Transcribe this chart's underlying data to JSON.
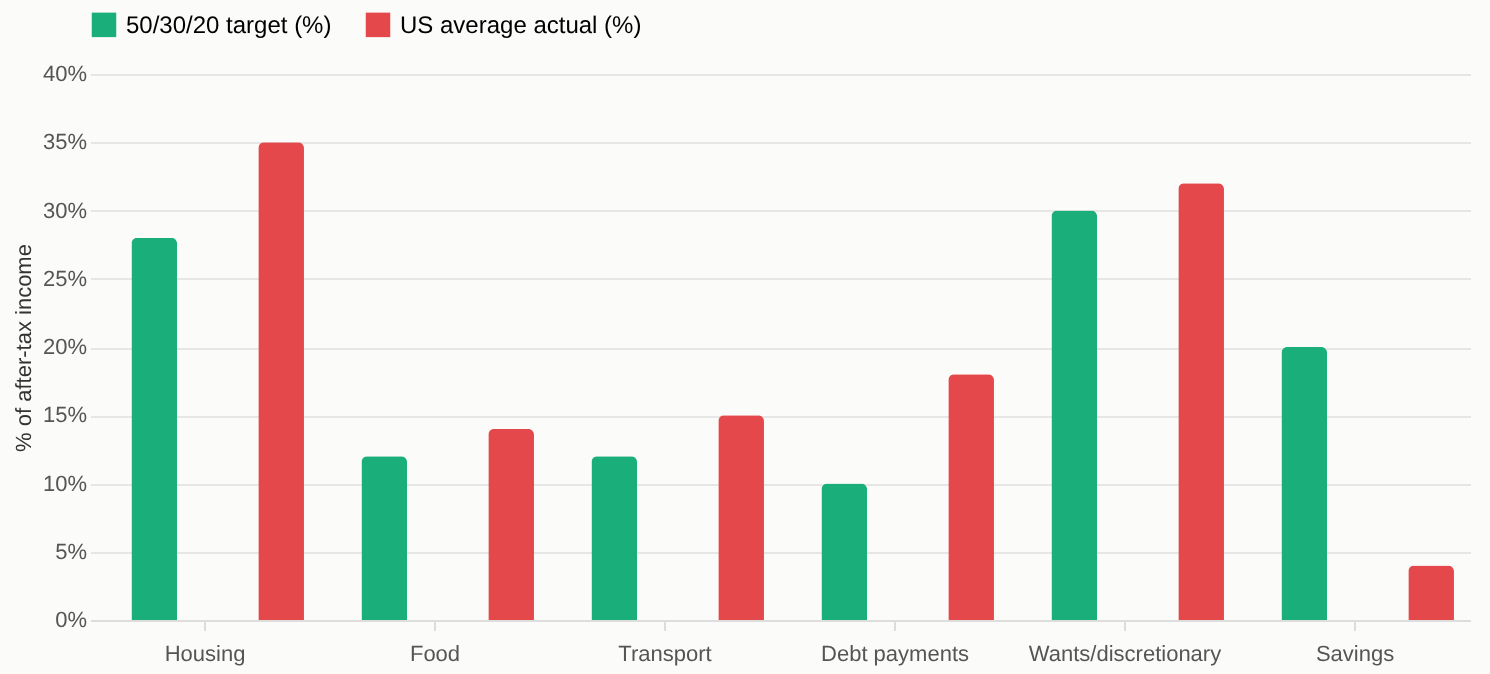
{
  "chart_data": {
    "type": "bar",
    "categories": [
      "Housing",
      "Food",
      "Transport",
      "Debt payments",
      "Wants/discretionary",
      "Savings"
    ],
    "ylabel": "% of after-tax income",
    "series": [
      {
        "name": "50/30/20 target (%)",
        "color": "#1aaf7a",
        "values": [
          28,
          12,
          12,
          10,
          30,
          20
        ]
      },
      {
        "name": "US average actual (%)",
        "color": "#e5484b",
        "values": [
          35,
          14,
          15,
          18,
          32,
          4
        ]
      }
    ],
    "ylim": [
      0,
      40
    ],
    "yticks": [
      {
        "value": 0,
        "label": "0%"
      },
      {
        "value": 5,
        "label": "5%"
      },
      {
        "value": 10,
        "label": "10%"
      },
      {
        "value": 15,
        "label": "15%"
      },
      {
        "value": 20,
        "label": "20%"
      },
      {
        "value": 25,
        "label": "25%"
      },
      {
        "value": 30,
        "label": "30%"
      },
      {
        "value": 35,
        "label": "35%"
      },
      {
        "value": 40,
        "label": "40%"
      }
    ],
    "grid": "y",
    "legend": "top"
  }
}
